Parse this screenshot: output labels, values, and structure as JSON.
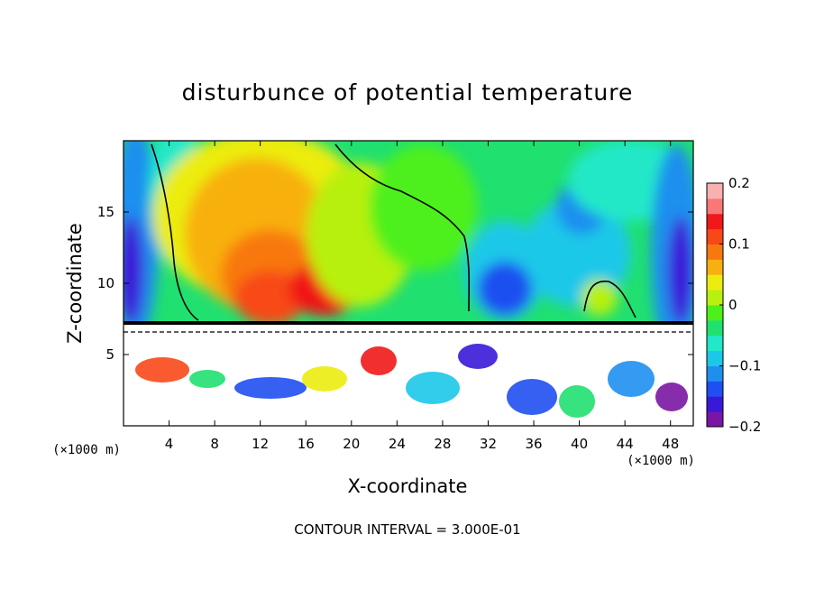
{
  "chart_data": {
    "type": "heatmap",
    "title": "disturbunce of potential temperature",
    "xlabel": "X-coordinate",
    "ylabel": "Z-coordinate",
    "x_unit_note_left": "(×1000 m)",
    "x_unit_note_right": "(×1000 m)",
    "contour_note": "CONTOUR INTERVAL = 3.000E-01",
    "xlim": [
      0,
      50
    ],
    "ylim": [
      0,
      20
    ],
    "x_ticks": [
      4,
      8,
      12,
      16,
      20,
      24,
      28,
      32,
      36,
      40,
      44,
      48
    ],
    "x_tick_labels": [
      "4",
      "8",
      "12",
      "16",
      "20",
      "24",
      "28",
      "32",
      "36",
      "40",
      "44",
      "48"
    ],
    "y_ticks": [
      5,
      10,
      15
    ],
    "y_tick_labels": [
      "5",
      "10",
      "15"
    ],
    "colorbar": {
      "min": -0.2,
      "max": 0.2,
      "ticks": [
        0.2,
        0.1,
        0,
        -0.1,
        -0.2
      ],
      "tick_labels": [
        "0.2",
        "0.1",
        "0",
        "−0.1",
        "−0.2"
      ],
      "colors": [
        "#7a16a3",
        "#3a18d8",
        "#1f4ff0",
        "#1f8fef",
        "#1cc8e8",
        "#20e8c8",
        "#20e070",
        "#4ef01c",
        "#b8f010",
        "#ecec10",
        "#f8b010",
        "#f87810",
        "#f84818",
        "#f01818",
        "#f87878",
        "#f8b0b0"
      ]
    }
  }
}
